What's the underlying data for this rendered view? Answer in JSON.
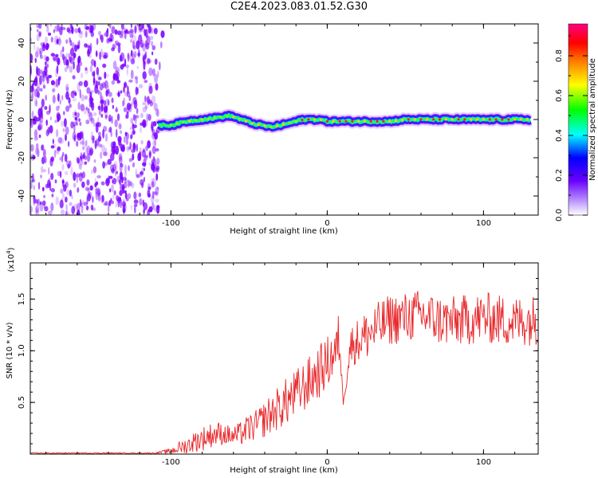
{
  "title": "C2E4.2023.083.01.52.G30",
  "colors": {
    "snr_line": "#e8272a",
    "noise_scatter": "#7a00ff",
    "axis": "#000000"
  },
  "chart_data": [
    {
      "type": "heatmap",
      "title": "C2E4.2023.083.01.52.G30",
      "xlabel": "Height of straight line (km)",
      "ylabel": "Frequency (Hz)",
      "xlim": [
        -190,
        135
      ],
      "ylim": [
        -50,
        50
      ],
      "xticks": [
        "-100",
        "0",
        "100"
      ],
      "xtick_values": [
        -100,
        0,
        100
      ],
      "yticks": [
        "-40",
        "-20",
        "0",
        "20",
        "40"
      ],
      "ytick_values": [
        -40,
        -20,
        0,
        20,
        40
      ],
      "noise_region_x": [
        -190,
        -108
      ],
      "signal_track": {
        "x": [
          -108,
          -100,
          -90,
          -80,
          -70,
          -62,
          -55,
          -48,
          -42,
          -36,
          -30,
          -25,
          -20,
          -15,
          -10,
          -5,
          0,
          10,
          20,
          30,
          40,
          50,
          60,
          70,
          80,
          90,
          100,
          110,
          120,
          130
        ],
        "y": [
          -3,
          -3,
          -1,
          0,
          1,
          2,
          0,
          -2,
          -3,
          -4,
          -3,
          -2,
          -1,
          0,
          0,
          0,
          -1,
          -1,
          -1,
          -1,
          -1,
          0,
          0,
          0,
          0,
          0,
          0,
          0,
          0,
          0
        ]
      },
      "colorbar": {
        "label": "Normalized spectral amplitude",
        "ticks": [
          "0.0",
          "0.2",
          "0.4",
          "0.6",
          "0.8"
        ],
        "tick_values": [
          0.0,
          0.2,
          0.4,
          0.6,
          0.8
        ],
        "range": [
          0,
          0.96
        ]
      }
    },
    {
      "type": "line",
      "xlabel": "Height of straight line (km)",
      "ylabel": "SNR (10 * v/v)",
      "scale_label": "(x10",
      "scale_exponent": "4",
      "xlim": [
        -190,
        135
      ],
      "ylim": [
        0,
        1.85
      ],
      "xticks": [
        "-100",
        "0",
        "100"
      ],
      "xtick_values": [
        -100,
        0,
        100
      ],
      "yticks": [
        "0.5",
        "1.0",
        "1.5"
      ],
      "ytick_values": [
        0.5,
        1.0,
        1.5
      ],
      "series": [
        {
          "x": [
            -190,
            -150,
            -110,
            -100,
            -95,
            -90,
            -85,
            -80,
            -75,
            -70,
            -65,
            -60,
            -55,
            -50,
            -45,
            -40,
            -35,
            -30,
            -25,
            -20,
            -15,
            -10,
            -5,
            0,
            3,
            6,
            8,
            10,
            15,
            20,
            25,
            30,
            35,
            40,
            50,
            60,
            70,
            80,
            90,
            100,
            110,
            120,
            130,
            135
          ],
          "y": [
            0.01,
            0.01,
            0.01,
            0.03,
            0.06,
            0.08,
            0.12,
            0.15,
            0.18,
            0.2,
            0.19,
            0.17,
            0.2,
            0.25,
            0.28,
            0.34,
            0.4,
            0.46,
            0.52,
            0.58,
            0.65,
            0.72,
            0.8,
            0.88,
            0.95,
            1.0,
            1.15,
            0.5,
            1.05,
            1.1,
            1.15,
            1.2,
            1.25,
            1.3,
            1.32,
            1.35,
            1.3,
            1.28,
            1.3,
            1.32,
            1.3,
            1.28,
            1.3,
            1.3
          ],
          "amplitude": [
            0.005,
            0.005,
            0.005,
            0.03,
            0.06,
            0.08,
            0.1,
            0.12,
            0.12,
            0.12,
            0.1,
            0.1,
            0.12,
            0.14,
            0.15,
            0.18,
            0.2,
            0.22,
            0.24,
            0.24,
            0.25,
            0.25,
            0.26,
            0.26,
            0.25,
            0.25,
            0.3,
            0.05,
            0.2,
            0.22,
            0.25,
            0.25,
            0.25,
            0.25,
            0.25,
            0.25,
            0.25,
            0.25,
            0.25,
            0.25,
            0.25,
            0.25,
            0.25,
            0.25
          ]
        }
      ]
    }
  ]
}
